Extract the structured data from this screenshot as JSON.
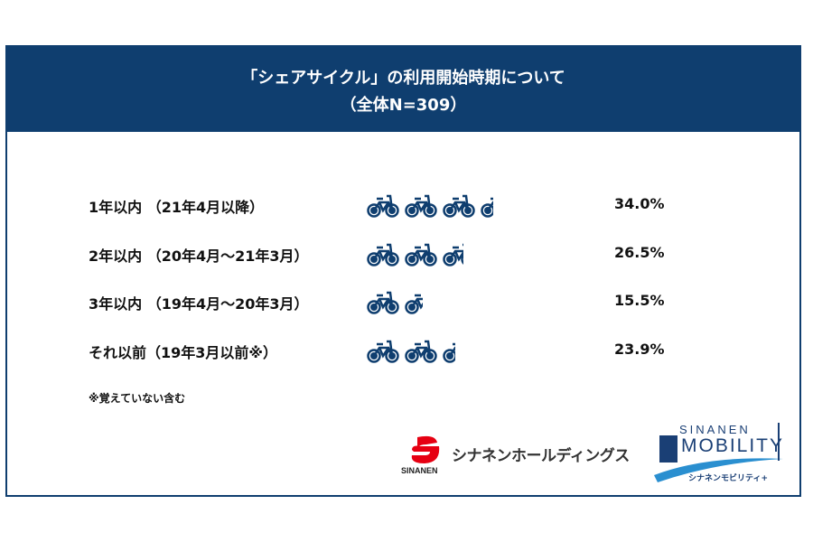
{
  "header": {
    "title_line1": "「シェアサイクル」の利用開始時期について",
    "title_line2": "（全体N=309）"
  },
  "colors": {
    "header_bg": "#0f3e6f",
    "icon": "#0f3e6f",
    "brand_red": "#e60012"
  },
  "chart_data": {
    "type": "pictogram",
    "icon": "bicycle-icon",
    "unit_per_icon_percent": 10,
    "categories": [
      "1年以内 （21年4月以降）",
      "2年以内 （20年4月～21年3月）",
      "3年以内 （19年4月～20年3月）",
      "それ以前（19年3月以前※）"
    ],
    "values": [
      34.0,
      26.5,
      15.5,
      23.9
    ],
    "value_labels": [
      "34.0%",
      "26.5%",
      "15.5%",
      "23.9%"
    ]
  },
  "footnote": "※覚えていない含む",
  "logos": {
    "sinanen_holdings": {
      "jp": "シナネンホールディングス",
      "en": "SINANEN"
    },
    "sinanen_mobility": {
      "top": "SINANEN",
      "main": "MOBILITY",
      "jp": "シナネンモビリティ+"
    }
  }
}
